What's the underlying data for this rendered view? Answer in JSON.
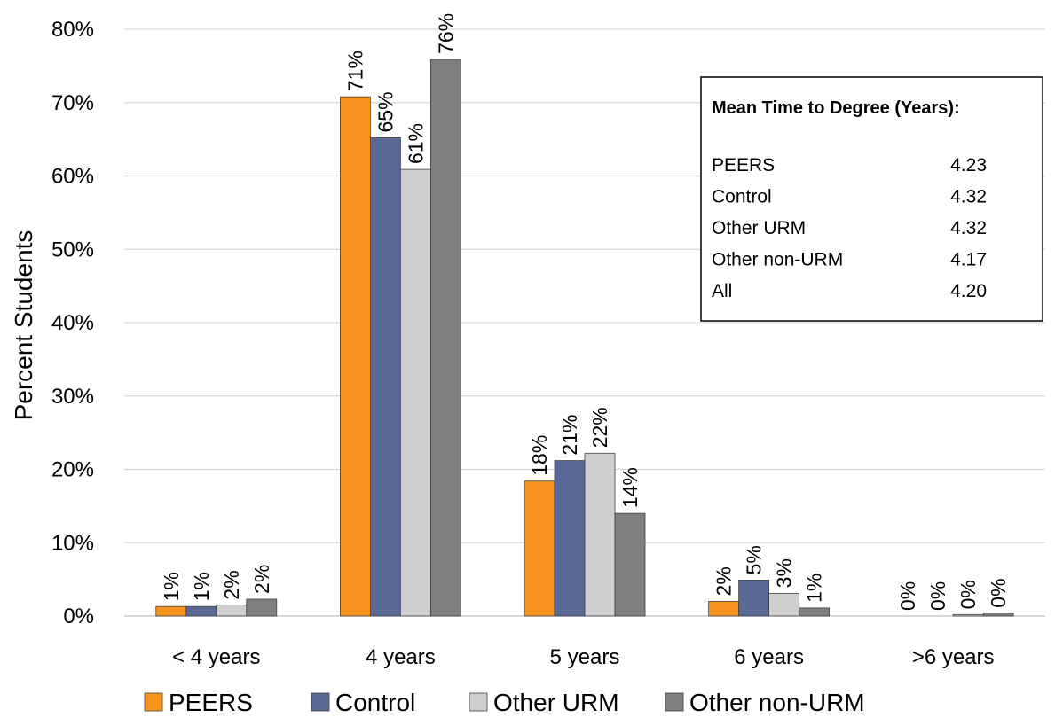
{
  "chart_data": {
    "type": "bar",
    "ylabel": "Percent Students",
    "ylim": [
      0,
      80
    ],
    "yticks": [
      "0%",
      "10%",
      "20%",
      "30%",
      "40%",
      "50%",
      "60%",
      "70%",
      "80%"
    ],
    "categories": [
      "< 4 years",
      "4 years",
      "5 years",
      "6 years",
      ">6 years"
    ],
    "series": [
      {
        "name": "PEERS",
        "color": "#F7941D",
        "values": [
          1.3,
          70.8,
          18.4,
          2.0,
          0.0
        ],
        "labels": [
          "1%",
          "71%",
          "18%",
          "2%",
          "0%"
        ]
      },
      {
        "name": "Control",
        "color": "#586995",
        "values": [
          1.3,
          65.2,
          21.2,
          4.9,
          0.0
        ],
        "labels": [
          "1%",
          "65%",
          "21%",
          "5%",
          "0%"
        ]
      },
      {
        "name": "Other URM",
        "color": "#CFCFCF",
        "values": [
          1.5,
          60.9,
          22.2,
          3.1,
          0.2
        ],
        "labels": [
          "2%",
          "61%",
          "22%",
          "3%",
          "0%"
        ]
      },
      {
        "name": "Other non-URM",
        "color": "#7F7F7F",
        "values": [
          2.3,
          75.9,
          14.0,
          1.1,
          0.4
        ],
        "labels": [
          "2%",
          "76%",
          "14%",
          "1%",
          "0%"
        ]
      }
    ],
    "legend_position": "bottom",
    "grid": true,
    "annotation_box": {
      "title": "Mean Time to Degree (Years):",
      "rows": [
        {
          "label": "PEERS",
          "value": "4.23"
        },
        {
          "label": "Control",
          "value": "4.32"
        },
        {
          "label": "Other URM",
          "value": "4.32"
        },
        {
          "label": "Other non-URM",
          "value": "4.17"
        },
        {
          "label": "All",
          "value": "4.20"
        }
      ]
    }
  }
}
